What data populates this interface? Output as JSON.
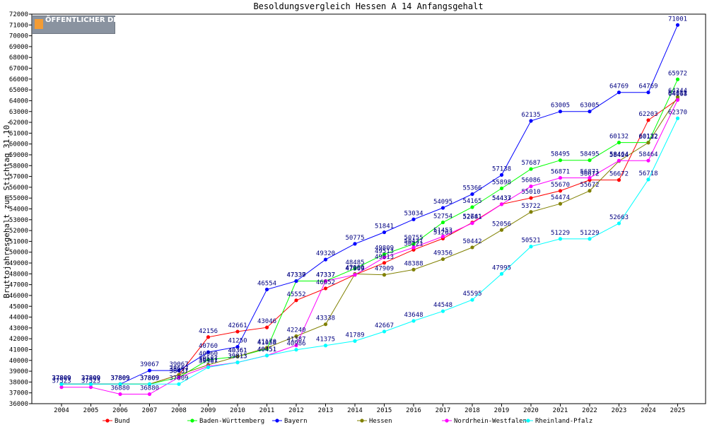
{
  "logo_text": "ÖFFENTLICHER DIENST.INFO",
  "chart_data": {
    "type": "line",
    "title": "Besoldungsvergleich Hessen A 14 Anfangsgehalt",
    "xlabel": "",
    "ylabel": "Bruttojahresgehalt zum Stichtag 31.10.",
    "ylim": [
      36000,
      72000
    ],
    "ytick_step": 1000,
    "grid": false,
    "legend_position": "bottom",
    "x": [
      2004,
      2005,
      2006,
      2007,
      2008,
      2009,
      2010,
      2011,
      2012,
      2013,
      2014,
      2015,
      2016,
      2017,
      2018,
      2019,
      2020,
      2021,
      2022,
      2023,
      2024,
      2025
    ],
    "series": [
      {
        "name": "Bund",
        "color": "#ff0000",
        "values": [
          37809,
          37809,
          37809,
          37809,
          38667,
          42156,
          42661,
          43046,
          45552,
          46652,
          47909,
          49013,
          50221,
          51263,
          52741,
          54437,
          55010,
          55670,
          56672,
          56672,
          62203,
          64111
        ]
      },
      {
        "name": "Baden-Württemberg",
        "color": "#00ff00",
        "values": [
          37809,
          37809,
          37809,
          37809,
          38437,
          40060,
          40361,
          41058,
          47337,
          47337,
          48485,
          49809,
          50755,
          52754,
          54165,
          55898,
          57687,
          58495,
          58495,
          60132,
          60132,
          65972
        ]
      },
      {
        "name": "Bayern",
        "color": "#0000ff",
        "values": [
          37809,
          37809,
          37809,
          39067,
          39067,
          40760,
          41250,
          46554,
          47330,
          49320,
          50775,
          51841,
          53034,
          54095,
          55366,
          57138,
          62135,
          63005,
          63005,
          64769,
          64769,
          71001
        ]
      },
      {
        "name": "Hessen",
        "color": "#808000",
        "values": [
          37809,
          37809,
          37809,
          37809,
          38667,
          39587,
          40361,
          41170,
          42240,
          43338,
          47990,
          47909,
          48388,
          49356,
          50442,
          52056,
          53722,
          54474,
          55672,
          58424,
          60122,
          64344
        ]
      },
      {
        "name": "Nordrhein-Westfalen",
        "color": "#ff00ff",
        "values": [
          37523,
          37523,
          36880,
          36880,
          38437,
          39451,
          39813,
          40451,
          41387,
          47337,
          47909,
          49513,
          50431,
          51453,
          52681,
          54433,
          56086,
          56871,
          56871,
          58464,
          58464,
          64068
        ]
      },
      {
        "name": "Rheinland-Pfalz",
        "color": "#00ffff",
        "values": [
          37809,
          37809,
          37809,
          37809,
          37809,
          39367,
          39813,
          40451,
          40986,
          41375,
          41789,
          42667,
          43648,
          44548,
          45595,
          47995,
          50521,
          51229,
          51229,
          52663,
          56718,
          62370
        ]
      }
    ],
    "data_labels": {
      "Bund": [
        "37809",
        "37809",
        "37809",
        "37809",
        "38667",
        "42156",
        "42661",
        "43046",
        "45552",
        "46652",
        "47909",
        "49013",
        "50221",
        "51263",
        "52741",
        "54437",
        "55010",
        "55670",
        "56672",
        "56672",
        "62203",
        "64111"
      ],
      "Baden-Württemberg": [
        "37809",
        "37809",
        "37809",
        "37809",
        "38437",
        "40060",
        "40361",
        "41058",
        "47337",
        "47337",
        "48485",
        "49809",
        "50755",
        "52754",
        "54165",
        "55898",
        "57687",
        "58495",
        "58495",
        "60132",
        "60132",
        "65972"
      ],
      "Bayern": [
        "37809",
        "37809",
        "37809",
        "39067",
        "39067",
        "40760",
        "41250",
        "46554",
        "47330",
        "49320",
        "50775",
        "51841",
        "53034",
        "54095",
        "55366",
        "57138",
        "62135",
        "63005",
        "63005",
        "64769",
        "64769",
        "71001"
      ],
      "Hessen": [
        "37809",
        "37809",
        "37809",
        "37809",
        "38667",
        "39587",
        "40361",
        "41170",
        "42240",
        "43338",
        "47990",
        "47909",
        "48388",
        "49356",
        "50442",
        "52056",
        "53722",
        "54474",
        "55672",
        "58424",
        "60122",
        "64344"
      ],
      "Nordrhein-Westfalen": [
        "37523",
        "37523",
        "36880",
        "36880",
        "38437",
        "39451",
        "39813",
        "40451",
        "41387",
        "47337",
        "47909",
        "49513",
        "50431",
        "51453",
        "52681",
        "54433",
        "56086",
        "56871",
        "56871",
        "58464",
        "58464",
        "64068"
      ],
      "Rheinland-Pfalz": [
        "37809",
        "37809",
        "37809",
        "37809",
        "37809",
        "39367",
        "39813",
        "40451",
        "40986",
        "41375",
        "41789",
        "42667",
        "43648",
        "44548",
        "45595",
        "47995",
        "50521",
        "51229",
        "51229",
        "52663",
        "56718",
        "62370"
      ]
    }
  }
}
